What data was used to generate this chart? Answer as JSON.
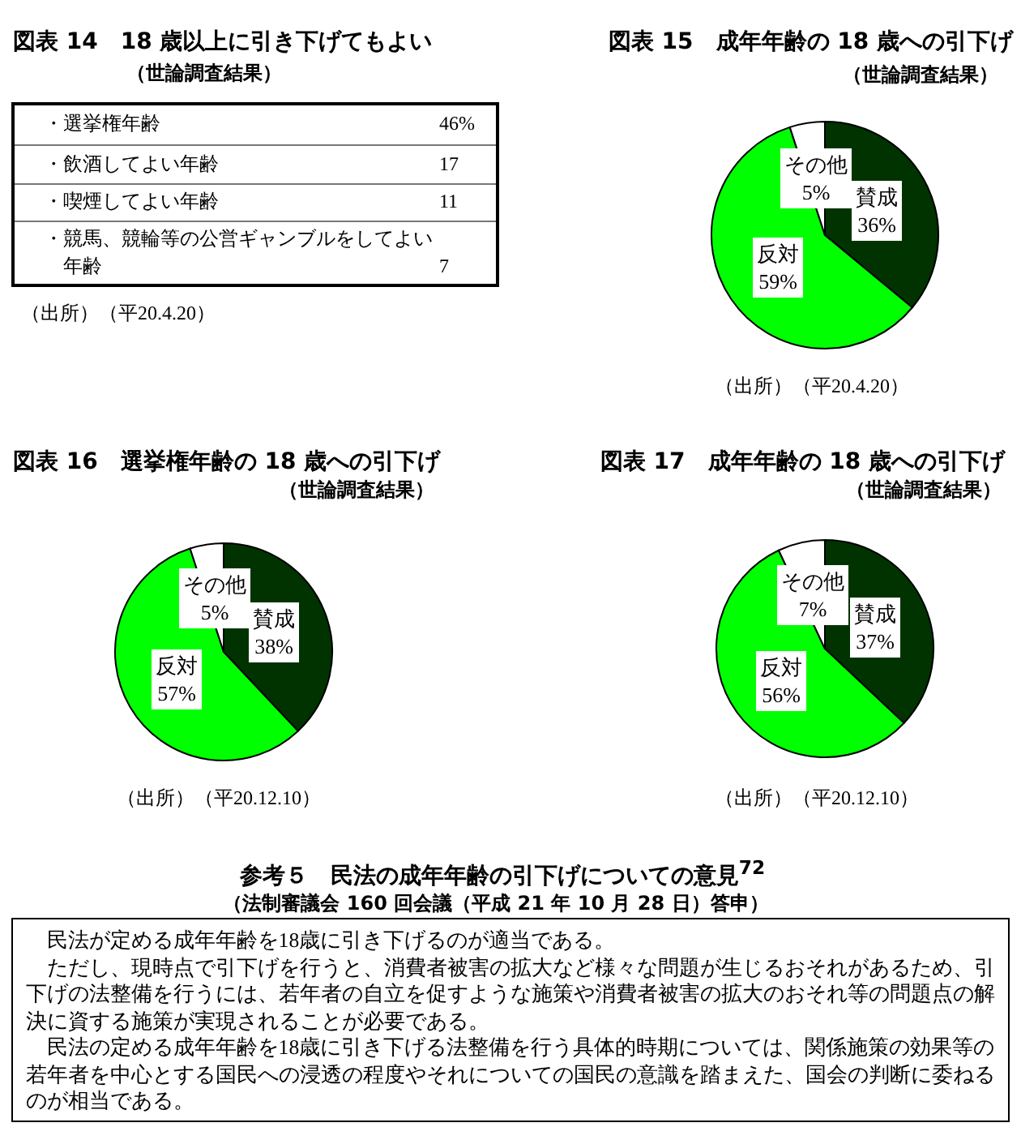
{
  "chart_data": [
    {
      "type": "other",
      "title": "図表 14　18 歳以上に引き下げてもよい",
      "subtitle": "（世論調査結果）",
      "categories": [
        "・選挙権年齢",
        "・飲酒してよい年齢",
        "・喫煙してよい年齢",
        "・競馬、競輪等の公営ギャンブルをしてよい年齢"
      ],
      "value_labels": [
        "46%",
        "17",
        "11",
        "7"
      ],
      "annotations": [
        "（出所）（平20.4.20）"
      ]
    },
    {
      "type": "pie",
      "title": "図表 15　成年年齢の 18 歳への引下げ",
      "subtitle": "（世論調査結果）",
      "categories": [
        "賛成",
        "反対",
        "その他"
      ],
      "values": [
        36,
        59,
        5
      ],
      "value_labels": [
        "36%",
        "59%",
        "5%"
      ],
      "colors": [
        "#003300",
        "#00ff00",
        "#ffffff"
      ],
      "annotations": [
        "（出所）（平20.4.20）"
      ]
    },
    {
      "type": "pie",
      "title": "図表 16　選挙権年齢の 18 歳への引下げ",
      "subtitle": "（世論調査結果）",
      "categories": [
        "賛成",
        "反対",
        "その他"
      ],
      "values": [
        38,
        57,
        5
      ],
      "value_labels": [
        "38%",
        "57%",
        "5%"
      ],
      "colors": [
        "#003300",
        "#00ff00",
        "#ffffff"
      ],
      "annotations": [
        "（出所）（平20.12.10）"
      ]
    },
    {
      "type": "pie",
      "title": "図表 17　成年年齢の 18 歳への引下げ",
      "subtitle": "（世論調査結果）",
      "categories": [
        "賛成",
        "反対",
        "その他"
      ],
      "values": [
        37,
        56,
        7
      ],
      "value_labels": [
        "37%",
        "56%",
        "7%"
      ],
      "colors": [
        "#003300",
        "#00ff00",
        "#ffffff"
      ],
      "annotations": [
        "（出所）（平20.12.10）"
      ]
    },
    {
      "type": "other",
      "title": "参考５　民法の成年年齢の引下げについての意見$^{72}$",
      "subtitle": "（法制審議会 160 回会議（平成 21 年 10 月 28 日）答申）",
      "annotations": [
        "民法が定める成年年齢を18歳に引き下げるのが適当である。",
        "ただし、現時点で引下げを行うと、消費者被害の拡大など様々な問題が生じるおそれがあるため、引下げの法整備を行うには、若年者の自立を促すような施策や消費者被害の拡大のおそれ等の問題点の解決に資する施策が実現されることが必要である。",
        "民法の定める成年年齢を18歳に引き下げる法整備を行う具体的時期については、関係施策の効果等の若年者を中心とする国民への浸透の程度やそれについての国民の意識を踏まえた、国会の判断に委ねるのが相当である。"
      ]
    }
  ]
}
